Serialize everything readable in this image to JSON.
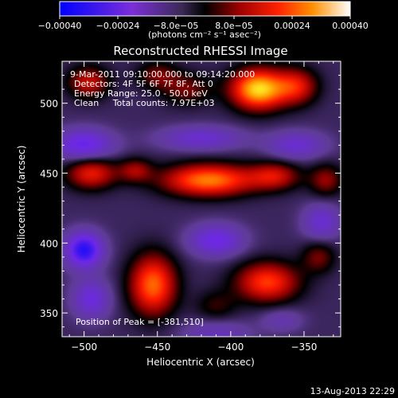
{
  "chart_data": {
    "type": "heatmap",
    "title": "Reconstructed RHESSI Image",
    "xlabel": "Heliocentric X (arcsec)",
    "ylabel": "Heliocentric Y (arcsec)",
    "xlim": [
      -515,
      -325
    ],
    "ylim": [
      333,
      530
    ],
    "x_ticks": [
      -500,
      -450,
      -400,
      -350
    ],
    "y_ticks": [
      350,
      400,
      450,
      500
    ],
    "colorbar": {
      "range": [
        -0.0004,
        0.0004
      ],
      "tick_values": [
        -0.0004,
        -0.00024,
        -8e-05,
        8e-05,
        0.00024,
        0.0004
      ],
      "tick_labels": [
        "-0.00040",
        "-0.00024",
        "-8.0e-05",
        "8.0e-05",
        "0.00024",
        "0.00040"
      ],
      "unit_label": "(photons cm⁻² s⁻¹ asec⁻²)"
    },
    "annotations": {
      "time_range": "9-Mar-2011 09:10:00.000 to 09:14:20.000",
      "detectors": "Detectors: 4F 5F 6F 7F 8F, Att 0",
      "energy": "Energy Range: 25.0 - 50.0 keV",
      "clean_counts": "Clean     Total counts: 7.97E+03",
      "peak": "Position of Peak = [-381,510]"
    },
    "sources": [
      {
        "x": -381,
        "y": 510,
        "amp": 0.0004,
        "sx": 13,
        "sy": 10
      },
      {
        "x": -355,
        "y": 512,
        "amp": 0.0002,
        "sx": 10,
        "sy": 9
      },
      {
        "x": -430,
        "y": 510,
        "amp": 0.00012,
        "sx": 12,
        "sy": 8
      },
      {
        "x": -497,
        "y": 515,
        "amp": 0.00018,
        "sx": 10,
        "sy": 8
      },
      {
        "x": -450,
        "y": 520,
        "amp": 0.00012,
        "sx": 10,
        "sy": 7
      },
      {
        "x": -415,
        "y": 445,
        "amp": 0.00032,
        "sx": 22,
        "sy": 8
      },
      {
        "x": -370,
        "y": 448,
        "amp": 0.00018,
        "sx": 12,
        "sy": 7
      },
      {
        "x": -495,
        "y": 450,
        "amp": 0.00022,
        "sx": 12,
        "sy": 8
      },
      {
        "x": -465,
        "y": 452,
        "amp": 0.00014,
        "sx": 8,
        "sy": 6
      },
      {
        "x": -335,
        "y": 445,
        "amp": 0.00014,
        "sx": 8,
        "sy": 8
      },
      {
        "x": -453,
        "y": 370,
        "amp": 0.0003,
        "sx": 11,
        "sy": 15
      },
      {
        "x": -375,
        "y": 372,
        "amp": 0.00026,
        "sx": 15,
        "sy": 10
      },
      {
        "x": -340,
        "y": 390,
        "amp": 0.00012,
        "sx": 8,
        "sy": 8
      },
      {
        "x": -410,
        "y": 355,
        "amp": 8e-05,
        "sx": 10,
        "sy": 8
      },
      {
        "x": -500,
        "y": 470,
        "amp": -0.0002,
        "sx": 14,
        "sy": 8
      },
      {
        "x": -420,
        "y": 475,
        "amp": -0.00014,
        "sx": 20,
        "sy": 6
      },
      {
        "x": -355,
        "y": 470,
        "amp": -0.00014,
        "sx": 14,
        "sy": 7
      },
      {
        "x": -500,
        "y": 395,
        "amp": -0.00028,
        "sx": 9,
        "sy": 9
      },
      {
        "x": -495,
        "y": 360,
        "amp": -0.00016,
        "sx": 9,
        "sy": 10
      },
      {
        "x": -410,
        "y": 402,
        "amp": -0.00018,
        "sx": 13,
        "sy": 8
      },
      {
        "x": -338,
        "y": 415,
        "amp": -0.00014,
        "sx": 9,
        "sy": 9
      },
      {
        "x": -410,
        "y": 335,
        "amp": -0.0001,
        "sx": 16,
        "sy": 7
      },
      {
        "x": -365,
        "y": 345,
        "amp": -8e-05,
        "sx": 10,
        "sy": 6
      }
    ]
  },
  "footer": {
    "timestamp": "13-Aug-2013 22:29"
  }
}
